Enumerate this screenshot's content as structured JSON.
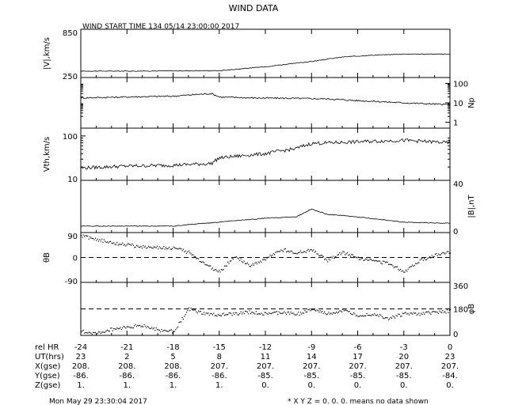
{
  "title": "WIND DATA",
  "subtitle": "WIND START TIME 134 05/14 23:00:00 2017",
  "footer_left": "Mon May 29 23:30:04 2017",
  "footer_right": "* X Y Z = 0. 0. 0. means no data shown",
  "chart_data": [
    {
      "type": "line",
      "name": "speed",
      "ylabel": "|V|,km/s",
      "ylim": [
        250,
        850
      ],
      "yticks_left": [
        {
          "v": 850,
          "label": "850"
        },
        {
          "v": 250,
          "label": "250"
        }
      ],
      "x": [
        -24,
        -21,
        -18,
        -15,
        -12,
        -9,
        -7,
        -5,
        -3,
        0
      ],
      "values": [
        330,
        330,
        333,
        335,
        385,
        450,
        505,
        528,
        542,
        540
      ]
    },
    {
      "type": "line",
      "name": "density",
      "ylabel": "Np",
      "yscale": "log",
      "ylim": [
        0.5,
        200
      ],
      "yticks_right": [
        {
          "v": 100,
          "label": "100"
        },
        {
          "v": 10,
          "label": "10"
        },
        {
          "v": 1,
          "label": "1"
        }
      ],
      "x": [
        -24,
        -21,
        -18,
        -15.5,
        -15,
        -13,
        -10,
        -8,
        -6,
        -3,
        0
      ],
      "values": [
        18,
        20,
        22,
        30,
        20,
        18,
        17,
        16,
        13,
        10,
        8
      ]
    },
    {
      "type": "line",
      "name": "thermal",
      "ylabel": "Vth,km/s",
      "yscale": "log",
      "ylim": [
        10,
        150
      ],
      "yticks_left": [
        {
          "v": 100,
          "label": "100"
        },
        {
          "v": 10,
          "label": "10"
        }
      ],
      "x": [
        -24,
        -21,
        -18,
        -15.5,
        -15,
        -12,
        -10,
        -9,
        -6,
        -3,
        0
      ],
      "values": [
        19,
        21,
        22,
        24,
        32,
        40,
        52,
        68,
        74,
        80,
        70
      ]
    },
    {
      "type": "line",
      "name": "bfield",
      "ylabel": "|B|,nT",
      "ylim": [
        0,
        40
      ],
      "yticks_right": [
        {
          "v": 40,
          "label": "40"
        },
        {
          "v": 0,
          "label": "0"
        }
      ],
      "x": [
        -24,
        -21,
        -18,
        -15,
        -12,
        -10,
        -9,
        -8,
        -6,
        -3,
        0
      ],
      "values": [
        5,
        5,
        5,
        8,
        11,
        12,
        18,
        14,
        12,
        8,
        7
      ]
    },
    {
      "type": "scatter",
      "name": "theta",
      "ylabel": "θB",
      "ylim": [
        -90,
        90
      ],
      "yticks_left": [
        {
          "v": 90,
          "label": "90"
        },
        {
          "v": 0,
          "label": "0"
        },
        {
          "v": -90,
          "label": "-90"
        }
      ],
      "reference_line": 0,
      "x": [
        -24,
        -22,
        -20,
        -18,
        -17,
        -16,
        -15,
        -14,
        -13,
        -12,
        -11,
        -10,
        -9,
        -8,
        -7,
        -6,
        -5,
        -4,
        -3,
        -2,
        -1,
        0
      ],
      "values": [
        80,
        55,
        40,
        35,
        20,
        -20,
        -50,
        5,
        -30,
        -5,
        30,
        20,
        30,
        -10,
        20,
        0,
        -10,
        -20,
        -50,
        -10,
        10,
        20
      ]
    },
    {
      "type": "scatter",
      "name": "phi",
      "ylabel": "φB",
      "ylim": [
        0,
        360
      ],
      "yticks_right": [
        {
          "v": 360,
          "label": "360"
        },
        {
          "v": 180,
          "label": "180"
        },
        {
          "v": 0,
          "label": "0"
        }
      ],
      "reference_line": 180,
      "x": [
        -24,
        -23,
        -22,
        -21,
        -20,
        -19,
        -18,
        -17,
        -16,
        -15,
        -14,
        -13,
        -12,
        -11,
        -10,
        -9,
        -8,
        -7,
        -6,
        -5,
        -4,
        -3,
        -2,
        -1,
        0
      ],
      "values": [
        30,
        15,
        45,
        60,
        70,
        40,
        30,
        180,
        150,
        140,
        150,
        160,
        150,
        160,
        145,
        180,
        150,
        170,
        140,
        150,
        120,
        150,
        150,
        160,
        170
      ]
    }
  ],
  "x_axis": {
    "xlim": [
      -24,
      0
    ],
    "ticks": [
      -24,
      -21,
      -18,
      -15,
      -12,
      -9,
      -6,
      -3,
      0
    ],
    "rows": [
      {
        "label": "rel HR",
        "values": [
          "-24",
          "-21",
          "-18",
          "-15",
          "-12",
          "-9",
          "-6",
          "-3",
          "0"
        ]
      },
      {
        "label": "UT(hrs)",
        "values": [
          "23",
          "2",
          "5",
          "8",
          "11",
          "14",
          "17",
          "20",
          "23"
        ]
      },
      {
        "label": "X(gse)",
        "values": [
          "208.",
          "208.",
          "208.",
          "207.",
          "207.",
          "207.",
          "207.",
          "207.",
          "207."
        ]
      },
      {
        "label": "Y(gse)",
        "values": [
          "-86.",
          "-86.",
          "-86.",
          "-86.",
          "-85.",
          "-85.",
          "-85.",
          "-85.",
          "-84."
        ]
      },
      {
        "label": "Z(gse)",
        "values": [
          "1.",
          "1.",
          "1.",
          "1.",
          "0.",
          "0.",
          "0.",
          "0.",
          "0."
        ]
      }
    ]
  }
}
